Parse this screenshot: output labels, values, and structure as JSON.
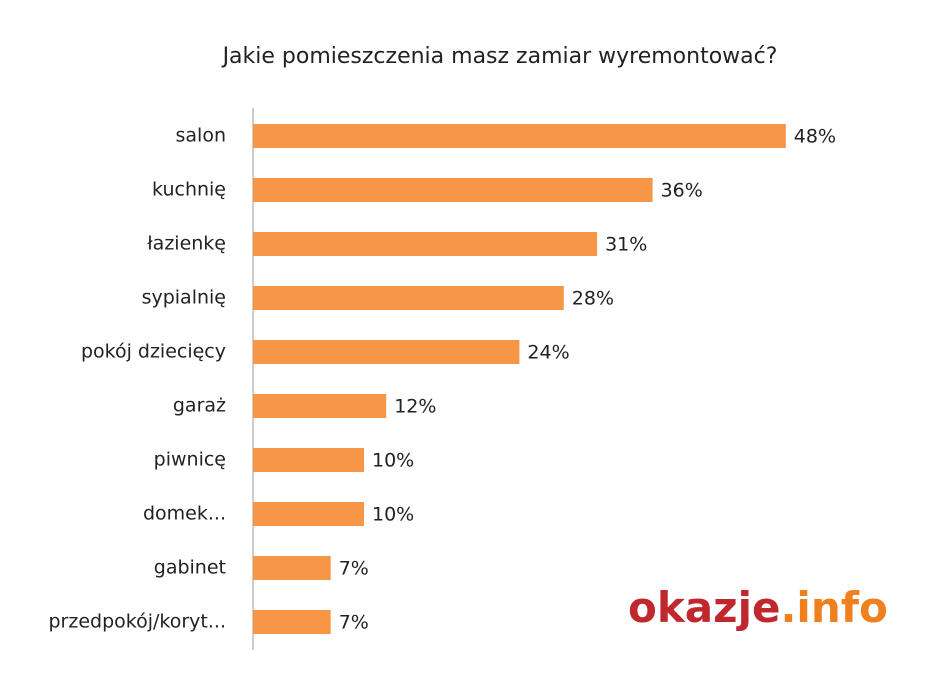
{
  "chart_data": {
    "type": "bar",
    "orientation": "horizontal",
    "title": "Jakie pomieszczenia masz zamiar wyremontować?",
    "categories": [
      "salon",
      "kuchnię",
      "łazienkę",
      "sypialnię",
      "pokój dziecięcy",
      "garaż",
      "piwnicę",
      "domek...",
      "gabinet",
      "przedpokój/koryt..."
    ],
    "values": [
      48,
      36,
      31,
      28,
      24,
      12,
      10,
      10,
      7,
      7
    ],
    "value_labels": [
      "48%",
      "36%",
      "31%",
      "28%",
      "24%",
      "12%",
      "10%",
      "10%",
      "7%",
      "7%"
    ],
    "color": "#f79646"
  },
  "logo": {
    "name": "okazje",
    "suffix": ".info"
  }
}
